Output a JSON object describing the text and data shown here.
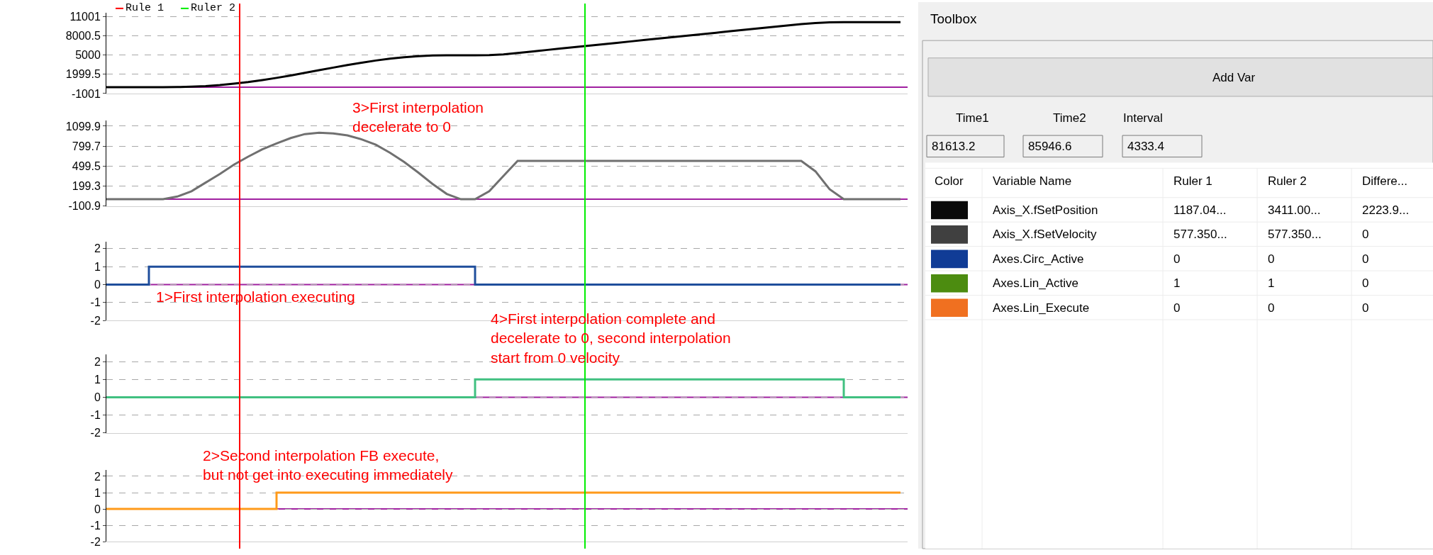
{
  "chart_data": [
    {
      "type": "line",
      "categories": [
        null,
        null,
        null,
        null,
        null,
        null,
        null,
        null,
        null,
        null,
        null,
        null,
        null,
        null,
        null,
        null,
        null,
        null,
        null,
        null,
        null,
        null,
        null,
        null,
        null,
        null,
        null,
        null,
        null,
        null,
        null,
        null,
        null,
        null,
        null,
        null,
        null,
        null,
        null,
        null,
        null,
        null,
        null,
        null,
        null,
        null,
        null,
        null,
        null,
        null,
        null,
        null,
        null,
        null,
        null,
        null,
        null
      ],
      "ylim": [
        -1001,
        11600
      ],
      "yticks": [
        -1001,
        1999.5,
        5000,
        8000.5,
        11001
      ],
      "grid": "y",
      "tick_labels": "y",
      "series": [
        {
          "color": "#000000",
          "values": [
            0,
            0,
            0,
            0,
            0,
            10,
            60,
            160,
            320,
            530,
            790,
            1100,
            1440,
            1820,
            2220,
            2630,
            3040,
            3430,
            3800,
            4140,
            4430,
            4660,
            4820,
            4920,
            4950,
            4950,
            4950,
            4980,
            5100,
            5320,
            5545,
            5770,
            5995,
            6220,
            6445,
            6670,
            6895,
            7120,
            7345,
            7570,
            7795,
            8020,
            8245,
            8470,
            8695,
            8920,
            9145,
            9370,
            9595,
            9820,
            9980,
            10080,
            10100,
            10100,
            10100,
            10100,
            10100
          ]
        }
      ],
      "ref_lines": [
        {
          "axis": "y",
          "value": 0,
          "color": "#a020a0"
        }
      ],
      "annotations": [
        "Rule 1",
        "Ruler 2"
      ]
    },
    {
      "type": "line",
      "categories": [
        null,
        null,
        null,
        null,
        null,
        null,
        null,
        null,
        null,
        null,
        null,
        null,
        null,
        null,
        null,
        null,
        null,
        null,
        null,
        null,
        null,
        null,
        null,
        null,
        null,
        null,
        null,
        null,
        null,
        null,
        null,
        null,
        null,
        null,
        null,
        null,
        null,
        null,
        null,
        null,
        null,
        null,
        null,
        null,
        null,
        null,
        null,
        null,
        null,
        null,
        null,
        null,
        null,
        null,
        null,
        null,
        null
      ],
      "ylim": [
        -100.9,
        1180
      ],
      "yticks": [
        -100.9,
        199.3,
        499.5,
        799.7,
        1099.9
      ],
      "grid": "y",
      "tick_labels": "y",
      "series": [
        {
          "color": "#707070",
          "values": [
            0,
            0,
            0,
            0,
            0,
            40,
            120,
            250,
            380,
            520,
            640,
            750,
            840,
            920,
            980,
            1000,
            990,
            960,
            900,
            820,
            700,
            560,
            400,
            230,
            80,
            0,
            0,
            120,
            350,
            577,
            577,
            577,
            577,
            577,
            577,
            577,
            577,
            577,
            577,
            577,
            577,
            577,
            577,
            577,
            577,
            577,
            577,
            577,
            577,
            577,
            420,
            150,
            0,
            0,
            0,
            0,
            0
          ]
        }
      ],
      "ref_lines": [
        {
          "axis": "y",
          "value": 0,
          "color": "#a020a0"
        }
      ],
      "annotations": [
        "3>First interpolation\ndecelerate to 0"
      ]
    },
    {
      "type": "step",
      "categories": [
        null,
        null,
        null,
        null,
        null,
        null,
        null,
        null,
        null,
        null,
        null,
        null,
        null,
        null,
        null,
        null,
        null,
        null,
        null,
        null,
        null,
        null,
        null,
        null,
        null,
        null,
        null,
        null,
        null,
        null,
        null,
        null,
        null,
        null,
        null,
        null,
        null,
        null,
        null,
        null,
        null,
        null,
        null,
        null,
        null,
        null,
        null,
        null,
        null,
        null,
        null,
        null,
        null,
        null,
        null,
        null,
        null
      ],
      "ylim": [
        -2,
        2.4
      ],
      "yticks": [
        -2,
        -1,
        0,
        1,
        2
      ],
      "grid": "y",
      "tick_labels": "y",
      "series": [
        {
          "color": "#1f4e9c",
          "values": [
            0,
            0,
            0,
            1,
            1,
            1,
            1,
            1,
            1,
            1,
            1,
            1,
            1,
            1,
            1,
            1,
            1,
            1,
            1,
            1,
            1,
            1,
            1,
            1,
            1,
            1,
            0,
            0,
            0,
            0,
            0,
            0,
            0,
            0,
            0,
            0,
            0,
            0,
            0,
            0,
            0,
            0,
            0,
            0,
            0,
            0,
            0,
            0,
            0,
            0,
            0,
            0,
            0,
            0,
            0,
            0,
            0
          ]
        }
      ],
      "ref_lines": [
        {
          "axis": "y",
          "value": 0,
          "color": "#a020a0"
        }
      ],
      "annotations": [
        "1>First interpolation executing",
        "4>First interpolation complete and\ndecelerate to 0, second interpolation\nstart from 0 velocity"
      ]
    },
    {
      "type": "step",
      "categories": [
        null,
        null,
        null,
        null,
        null,
        null,
        null,
        null,
        null,
        null,
        null,
        null,
        null,
        null,
        null,
        null,
        null,
        null,
        null,
        null,
        null,
        null,
        null,
        null,
        null,
        null,
        null,
        null,
        null,
        null,
        null,
        null,
        null,
        null,
        null,
        null,
        null,
        null,
        null,
        null,
        null,
        null,
        null,
        null,
        null,
        null,
        null,
        null,
        null,
        null,
        null,
        null,
        null,
        null,
        null,
        null,
        null
      ],
      "ylim": [
        -2,
        2.4
      ],
      "yticks": [
        -2,
        -1,
        0,
        1,
        2
      ],
      "grid": "y",
      "tick_labels": "y",
      "series": [
        {
          "color": "#40c080",
          "values": [
            0,
            0,
            0,
            0,
            0,
            0,
            0,
            0,
            0,
            0,
            0,
            0,
            0,
            0,
            0,
            0,
            0,
            0,
            0,
            0,
            0,
            0,
            0,
            0,
            0,
            0,
            1,
            1,
            1,
            1,
            1,
            1,
            1,
            1,
            1,
            1,
            1,
            1,
            1,
            1,
            1,
            1,
            1,
            1,
            1,
            1,
            1,
            1,
            1,
            1,
            1,
            1,
            0,
            0,
            0,
            0,
            0
          ]
        }
      ],
      "ref_lines": [
        {
          "axis": "y",
          "value": 0,
          "color": "#a020a0"
        }
      ]
    },
    {
      "type": "step",
      "categories": [
        null,
        null,
        null,
        null,
        null,
        null,
        null,
        null,
        null,
        null,
        null,
        null,
        null,
        null,
        null,
        null,
        null,
        null,
        null,
        null,
        null,
        null,
        null,
        null,
        null,
        null,
        null,
        null,
        null,
        null,
        null,
        null,
        null,
        null,
        null,
        null,
        null,
        null,
        null,
        null,
        null,
        null,
        null,
        null,
        null,
        null,
        null,
        null,
        null,
        null,
        null,
        null,
        null,
        null,
        null,
        null,
        null
      ],
      "ylim": [
        -2,
        2.4
      ],
      "yticks": [
        -2,
        -1,
        0,
        1,
        2
      ],
      "grid": "y",
      "tick_labels": "y",
      "series": [
        {
          "color": "#ff9a1a",
          "values": [
            0,
            0,
            0,
            0,
            0,
            0,
            0,
            0,
            0,
            0,
            0,
            0,
            1,
            1,
            1,
            1,
            1,
            1,
            1,
            1,
            1,
            1,
            1,
            1,
            1,
            1,
            1,
            1,
            1,
            1,
            1,
            1,
            1,
            1,
            1,
            1,
            1,
            1,
            1,
            1,
            1,
            1,
            1,
            1,
            1,
            1,
            1,
            1,
            1,
            1,
            1,
            1,
            1,
            1,
            1,
            1,
            1
          ]
        }
      ],
      "ref_lines": [
        {
          "axis": "y",
          "value": 0,
          "color": "#a020a0"
        }
      ],
      "annotations": [
        "2>Second interpolation FB execute,\nbut not get into executing immediately"
      ]
    },
    {
      "type": "other",
      "title": "Toolbox",
      "colors": [
        "#0a0a0a",
        "#404040",
        "#103c96",
        "#4c8c10",
        "#f07020"
      ],
      "annotations": [
        "Add Var",
        "Time1",
        "Time2",
        "Interval",
        "81613.2",
        "85946.6",
        "4333.4",
        "Color",
        "Variable Name",
        "Ruler 1",
        "Ruler 2",
        "Differe...",
        "Axis_X.fSetPosition",
        "1187.04...",
        "3411.00...",
        "2223.9...",
        "Axis_X.fSetVelocity",
        "577.350...",
        "577.350...",
        "0",
        "Axes.Circ_Active",
        "0",
        "0",
        "0",
        "Axes.Lin_Active",
        "1",
        "1",
        "0",
        "Axes.Lin_Execute",
        "0",
        "0",
        "0"
      ]
    }
  ]
}
